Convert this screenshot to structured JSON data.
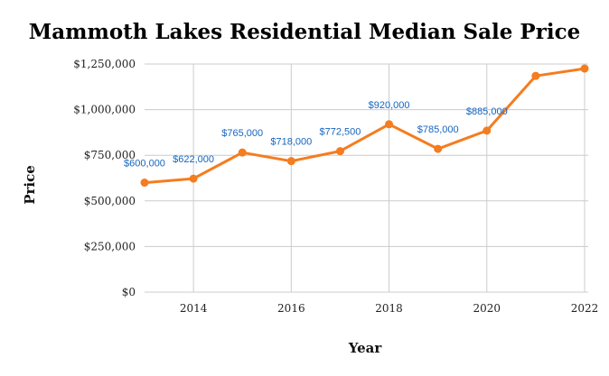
{
  "chart_data": {
    "type": "line",
    "title": "Mammoth Lakes Residential Median Sale Price",
    "xlabel": "Year",
    "ylabel": "Price",
    "x": [
      2013,
      2014,
      2015,
      2016,
      2017,
      2018,
      2019,
      2020,
      2021,
      2022
    ],
    "xlim": [
      2013,
      2022
    ],
    "x_ticks": [
      2014,
      2016,
      2018,
      2020,
      2022
    ],
    "ylim": [
      0,
      1250000
    ],
    "y_ticks": [
      0,
      250000,
      500000,
      750000,
      1000000,
      1250000
    ],
    "y_tick_labels": [
      "$0",
      "$250,000",
      "$500,000",
      "$750,000",
      "$1,000,000",
      "$1,250,000"
    ],
    "grid": true,
    "series": [
      {
        "values": [
          600000,
          622000,
          765000,
          718000,
          772500,
          920000,
          785000,
          885000,
          1185000,
          1225000
        ],
        "data_labels": [
          "$600,000",
          "$622,000",
          "$765,000",
          "$718,000",
          "$772,500",
          "$920,000",
          "$785,000",
          "$885,000",
          "",
          ""
        ],
        "color": "#f57c1f",
        "label_color": "#1565c0"
      }
    ]
  }
}
